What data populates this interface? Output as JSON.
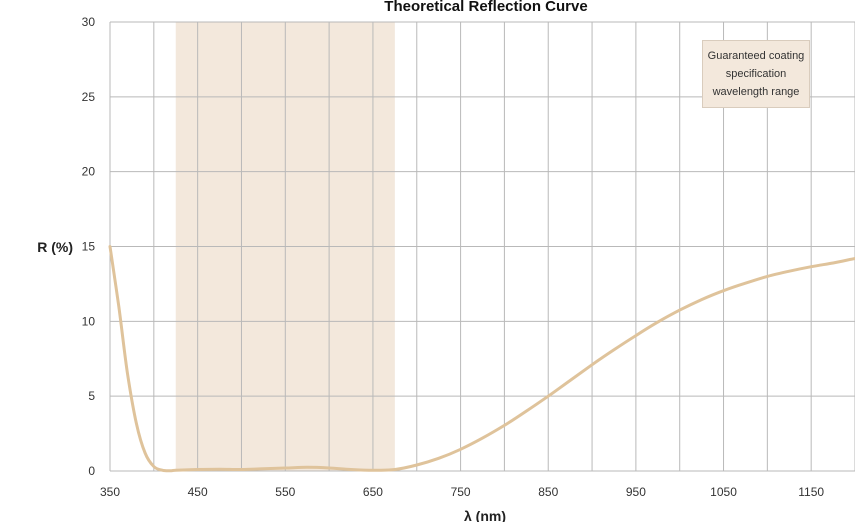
{
  "chart_data": {
    "type": "line",
    "title": "Theoretical Reflection Curve",
    "xlabel": "λ (nm)",
    "ylabel": "R (%)",
    "xlim": [
      350,
      1200
    ],
    "ylim": [
      0,
      30
    ],
    "x_ticks": [
      350,
      450,
      550,
      650,
      750,
      850,
      950,
      1050,
      1150
    ],
    "y_ticks": [
      0,
      5,
      10,
      15,
      20,
      25,
      30
    ],
    "grid": true,
    "highlight_band": {
      "x_range": [
        425,
        675
      ],
      "color": "#f3e8dc",
      "label": "Guaranteed coating specification wavelength range"
    },
    "line_color": "#dfc39b",
    "series": [
      {
        "x": [
          350,
          360,
          370,
          380,
          390,
          400,
          410,
          420,
          425,
          450,
          475,
          500,
          525,
          550,
          575,
          600,
          625,
          650,
          675,
          700,
          725,
          750,
          775,
          800,
          825,
          850,
          875,
          900,
          925,
          950,
          975,
          1000,
          1025,
          1050,
          1075,
          1100,
          1125,
          1150,
          1175,
          1200
        ],
        "y": [
          15,
          11,
          6.5,
          3.2,
          1.2,
          0.3,
          0.05,
          0.02,
          0.05,
          0.1,
          0.12,
          0.1,
          0.15,
          0.2,
          0.25,
          0.2,
          0.1,
          0.05,
          0.1,
          0.4,
          0.85,
          1.45,
          2.2,
          3.05,
          4.0,
          5.0,
          6.05,
          7.1,
          8.1,
          9.05,
          9.95,
          10.75,
          11.45,
          12.05,
          12.55,
          13.0,
          13.35,
          13.65,
          13.9,
          14.2
        ]
      }
    ]
  },
  "legend": {
    "band_label_lines": [
      "Guaranteed coating",
      "specification",
      "wavelength range"
    ]
  }
}
